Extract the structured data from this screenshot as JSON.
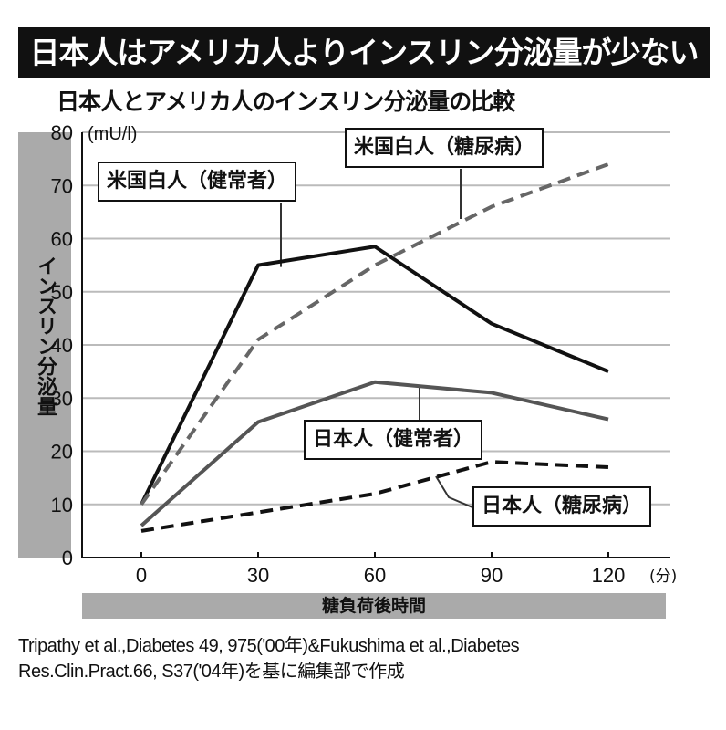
{
  "title": "日本人はアメリカ人よりインスリン分泌量が少ない",
  "subtitle": "日本人とアメリカ人のインスリン分泌量の比較",
  "footnote": [
    "Tripathy et al.,Diabetes 49, 975('00年)&Fukushima et al.,Diabetes",
    "Res.Clin.Pract.66, S37('04年)を基に編集部で作成"
  ],
  "chart_data": {
    "type": "line",
    "title": "日本人とアメリカ人のインスリン分泌量の比較",
    "xlabel": "糖負荷後時間",
    "xunit": "(分)",
    "ylabel": "インスリン分泌量",
    "yunit": "(mU/l)",
    "x": [
      0,
      30,
      60,
      90,
      120
    ],
    "xticks": [
      "0",
      "30",
      "60",
      "90",
      "120"
    ],
    "yticks": [
      "0",
      "10",
      "20",
      "30",
      "40",
      "50",
      "60",
      "70",
      "80"
    ],
    "ylim": [
      0,
      80
    ],
    "xlim": [
      -37,
      113
    ],
    "grid": true,
    "series": [
      {
        "name": "米国白人（健常者）",
        "values": [
          10,
          55,
          58.5,
          44,
          35
        ],
        "color": "#111111",
        "dash": false
      },
      {
        "name": "米国白人（糖尿病）",
        "values": [
          10,
          41,
          55,
          66,
          74
        ],
        "color": "#666666",
        "dash": true
      },
      {
        "name": "日本人（健常者）",
        "values": [
          6,
          25.5,
          33,
          31,
          26
        ],
        "color": "#555555",
        "dash": false
      },
      {
        "name": "日本人（糖尿病）",
        "values": [
          5,
          8.5,
          12,
          18,
          17
        ],
        "color": "#111111",
        "dash": true
      }
    ]
  }
}
